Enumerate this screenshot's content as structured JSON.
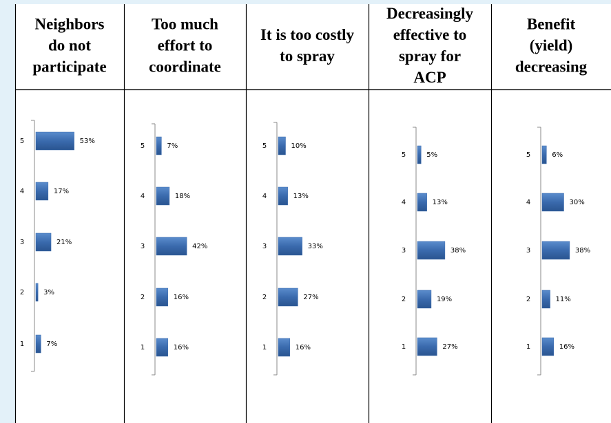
{
  "chart_data": [
    {
      "type": "bar",
      "title": [
        "Neighbors",
        "do not",
        "participate"
      ],
      "categories": [
        "5",
        "4",
        "3",
        "2",
        "1"
      ],
      "values": [
        53,
        17,
        21,
        3,
        7
      ],
      "value_labels": [
        "53%",
        "17%",
        "21%",
        "3%",
        "7%"
      ],
      "color": "#3a6aad"
    },
    {
      "type": "bar",
      "title": [
        "Too much",
        "effort to",
        "coordinate"
      ],
      "categories": [
        "5",
        "4",
        "3",
        "2",
        "1"
      ],
      "values": [
        7,
        18,
        42,
        16,
        16
      ],
      "value_labels": [
        "7%",
        "18%",
        "42%",
        "16%",
        "16%"
      ],
      "color": "#3a6aad"
    },
    {
      "type": "bar",
      "title": [
        "It is too costly",
        "to spray"
      ],
      "categories": [
        "5",
        "4",
        "3",
        "2",
        "1"
      ],
      "values": [
        10,
        13,
        33,
        27,
        16
      ],
      "value_labels": [
        "10%",
        "13%",
        "33%",
        "27%",
        "16%"
      ],
      "color": "#3a6aad"
    },
    {
      "type": "bar",
      "title": [
        "Decreasingly",
        "effective to",
        "spray for",
        "ACP"
      ],
      "categories": [
        "5",
        "4",
        "3",
        "2",
        "1"
      ],
      "values": [
        5,
        13,
        38,
        19,
        27
      ],
      "value_labels": [
        "5%",
        "13%",
        "38%",
        "19%",
        "27%"
      ],
      "color": "#3a6aad"
    },
    {
      "type": "bar",
      "title": [
        "Benefit",
        "(yield)",
        "decreasing"
      ],
      "categories": [
        "5",
        "4",
        "3",
        "2",
        "1"
      ],
      "values": [
        6,
        30,
        38,
        11,
        16
      ],
      "value_labels": [
        "6%",
        "30%",
        "38%",
        "11%",
        "16%"
      ],
      "color": "#3a6aad"
    }
  ]
}
